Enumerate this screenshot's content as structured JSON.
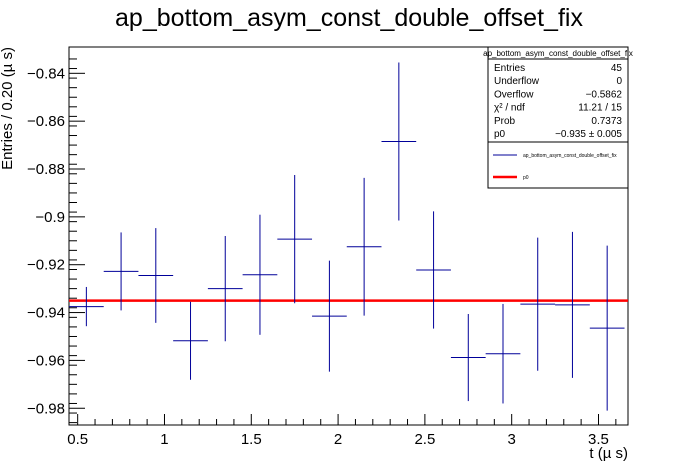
{
  "chart_data": {
    "type": "scatter",
    "title": "ap_bottom_asym_const_double_offset_fix",
    "xlabel": "t (µ s)",
    "ylabel": "Entries / 0.20 (µ s)",
    "xlim": [
      0.45,
      3.67
    ],
    "ylim": [
      -0.987,
      -0.829
    ],
    "x_ticks": [
      0.5,
      1,
      1.5,
      2,
      2.5,
      3,
      3.5
    ],
    "x_tick_labels": [
      "0.5",
      "1",
      "1.5",
      "2",
      "2.5",
      "3",
      "3.5"
    ],
    "y_ticks": [
      -0.98,
      -0.96,
      -0.94,
      -0.92,
      -0.9,
      -0.88,
      -0.86,
      -0.84
    ],
    "y_tick_labels": [
      "−0.98",
      "−0.96",
      "−0.94",
      "−0.92",
      "−0.9",
      "−0.88",
      "−0.86",
      "−0.84"
    ],
    "grid": false,
    "series": [
      {
        "name": "ap_bottom_asym_const_double_offset_fix",
        "color": "#000099",
        "x_halfwidth": 0.1,
        "points": [
          {
            "x": 0.55,
            "y": -0.9375,
            "err": 0.0082
          },
          {
            "x": 0.75,
            "y": -0.9228,
            "err": 0.0163
          },
          {
            "x": 0.95,
            "y": -0.9245,
            "err": 0.0198
          },
          {
            "x": 1.15,
            "y": -0.9518,
            "err": 0.0163
          },
          {
            "x": 1.35,
            "y": -0.93,
            "err": 0.022
          },
          {
            "x": 1.55,
            "y": -0.9242,
            "err": 0.0251
          },
          {
            "x": 1.75,
            "y": -0.9093,
            "err": 0.0268
          },
          {
            "x": 1.95,
            "y": -0.9415,
            "err": 0.0232
          },
          {
            "x": 2.15,
            "y": -0.9125,
            "err": 0.0288
          },
          {
            "x": 2.35,
            "y": -0.8685,
            "err": 0.033
          },
          {
            "x": 2.55,
            "y": -0.9222,
            "err": 0.0245
          },
          {
            "x": 2.75,
            "y": -0.9588,
            "err": 0.0182
          },
          {
            "x": 2.95,
            "y": -0.9572,
            "err": 0.0208
          },
          {
            "x": 3.15,
            "y": -0.9365,
            "err": 0.0278
          },
          {
            "x": 3.35,
            "y": -0.9368,
            "err": 0.0305
          },
          {
            "x": 3.55,
            "y": -0.9465,
            "err": 0.0345
          }
        ]
      },
      {
        "name": "p0",
        "type": "line",
        "color": "#ff0000",
        "value": -0.935
      }
    ],
    "stats_box": {
      "title": "ap_bottom_asym_const_double_offset_fix",
      "rows": [
        {
          "label": "Entries",
          "value": "45"
        },
        {
          "label": "Underflow",
          "value": "0"
        },
        {
          "label": "Overflow",
          "value": "−0.5862"
        },
        {
          "label": "χ² / ndf",
          "value": "11.21 / 15"
        },
        {
          "label": "Prob",
          "value": "0.7373"
        },
        {
          "label": "p0",
          "value": "−0.935 ± 0.005"
        }
      ]
    },
    "legend": {
      "placement": "top-right",
      "entries": [
        {
          "label": "ap_bottom_asym_const_double_offset_fix",
          "color": "#000099"
        },
        {
          "label": "p0",
          "color": "#ff0000"
        }
      ]
    }
  }
}
